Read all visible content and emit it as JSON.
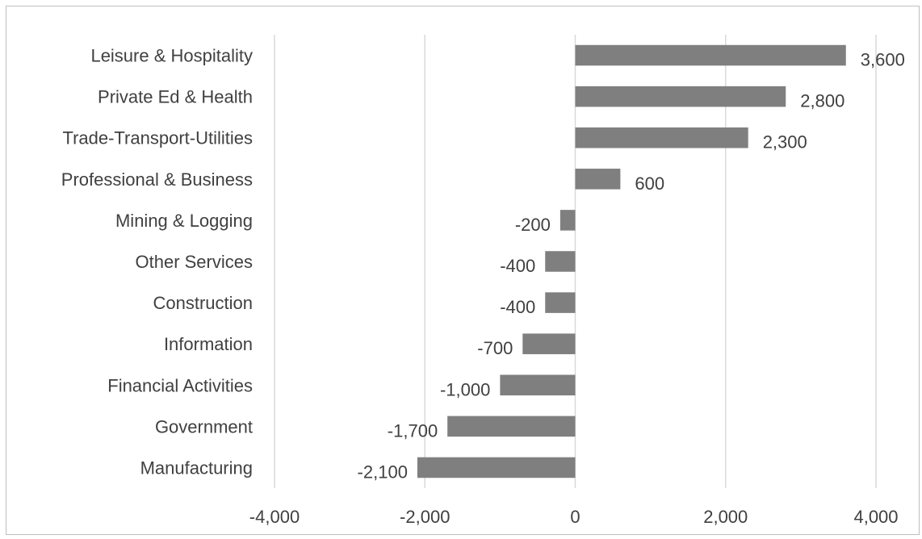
{
  "chart_data": {
    "type": "bar",
    "orientation": "horizontal",
    "title": "",
    "xlabel": "",
    "ylabel": "",
    "categories": [
      "Leisure & Hospitality",
      "Private Ed & Health",
      "Trade-Transport-Utilities",
      "Professional & Business",
      "Mining & Logging",
      "Other Services",
      "Construction",
      "Information",
      "Financial Activities",
      "Government",
      "Manufacturing"
    ],
    "values": [
      3600,
      2800,
      2300,
      600,
      -200,
      -400,
      -400,
      -700,
      -1000,
      -1700,
      -2100
    ],
    "data_labels": [
      "3,600",
      "2,800",
      "2,300",
      "600",
      "-200",
      "-400",
      "-400",
      "-700",
      "-1,000",
      "-1,700",
      "-2,100"
    ],
    "xlim": [
      -4000,
      4000
    ],
    "x_ticks": [
      -4000,
      -2000,
      0,
      2000,
      4000
    ],
    "x_tick_labels": [
      "-4,000",
      "-2,000",
      "0",
      "2,000",
      "4,000"
    ],
    "grid": true,
    "legend": "none",
    "colors": {
      "bar": "#7f7f7f",
      "grid": "#d9d9d9",
      "text": "#404040",
      "border": "#bfbfbf"
    }
  }
}
